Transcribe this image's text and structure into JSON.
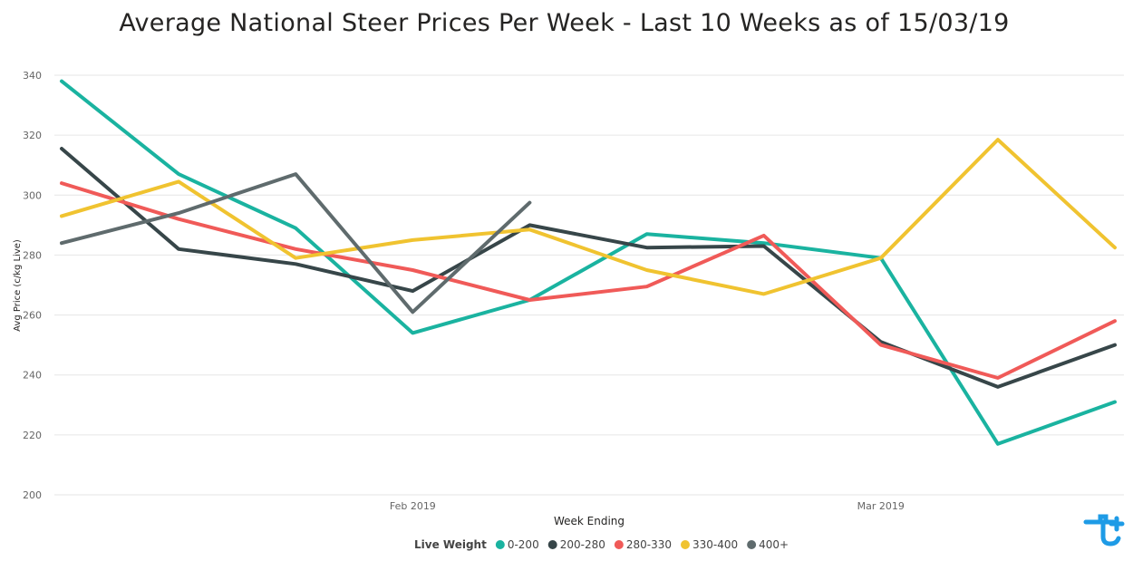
{
  "chart_data": {
    "type": "line",
    "title": "Average National Steer Prices Per Week - Last 10 Weeks as of 15/03/19",
    "xlabel": "Week Ending",
    "ylabel": "Avg Price (c/kg Live)",
    "ylim": [
      200,
      340
    ],
    "yticks": [
      200,
      220,
      240,
      260,
      280,
      300,
      320,
      340
    ],
    "x": [
      "2019-01-11",
      "2019-01-18",
      "2019-01-25",
      "2019-02-01",
      "2019-02-08",
      "2019-02-15",
      "2019-02-22",
      "2019-03-01",
      "2019-03-08",
      "2019-03-15"
    ],
    "xticks": [
      {
        "date": "2019-02-01",
        "label": "Feb 2019"
      },
      {
        "date": "2019-03-01",
        "label": "Mar 2019"
      }
    ],
    "grid": true,
    "legend_title": "Live Weight",
    "legend_position": "bottom",
    "series": [
      {
        "name": "0-200",
        "color": "#1AB3A0",
        "values": [
          338,
          307,
          289,
          254,
          265,
          287,
          284,
          279,
          217,
          231
        ]
      },
      {
        "name": "200-280",
        "color": "#374649",
        "values": [
          315.5,
          282,
          277,
          268,
          290,
          282.5,
          283,
          251,
          236,
          250
        ]
      },
      {
        "name": "280-330",
        "color": "#F05A58",
        "values": [
          304,
          292,
          282,
          275,
          265,
          269.5,
          286.5,
          250,
          239,
          258
        ]
      },
      {
        "name": "330-400",
        "color": "#F0C330",
        "values": [
          293,
          304.5,
          279,
          285,
          288.5,
          275,
          267,
          279,
          318.5,
          282.5
        ]
      },
      {
        "name": "400+",
        "color": "#5F6B6D",
        "values": [
          284,
          294,
          307,
          261,
          297.5,
          null,
          null,
          null,
          null,
          null
        ]
      }
    ]
  }
}
